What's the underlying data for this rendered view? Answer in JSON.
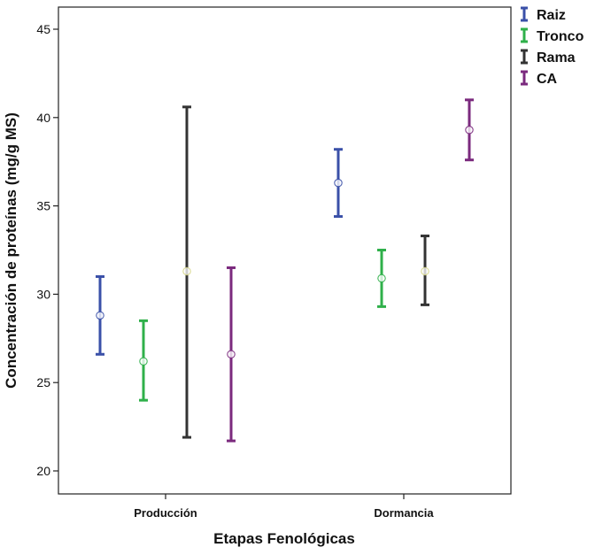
{
  "chart_data": {
    "type": "errorbar",
    "xlabel": "Etapas Fenológicas",
    "ylabel": "Concentración de proteínas (mg/g MS)",
    "categories": [
      "Producción",
      "Dormancia"
    ],
    "ylim": [
      19,
      46.3
    ],
    "yticks": [
      20,
      25,
      30,
      35,
      40,
      45
    ],
    "grid": false,
    "legend_position": "right-top",
    "series": [
      {
        "name": "Raiz",
        "color": "#3a50a8",
        "means": [
          28.8,
          36.3
        ],
        "lower": [
          26.6,
          34.4
        ],
        "upper": [
          31.0,
          38.2
        ]
      },
      {
        "name": "Tronco",
        "color": "#2fb04a",
        "means": [
          26.2,
          30.9
        ],
        "lower": [
          24.0,
          29.3
        ],
        "upper": [
          28.5,
          32.5
        ]
      },
      {
        "name": "Rama",
        "color": "#333333",
        "means": [
          31.3,
          31.3
        ],
        "lower": [
          21.9,
          29.4
        ],
        "upper": [
          40.6,
          33.3
        ]
      },
      {
        "name": "CA",
        "color": "#7b2a7e",
        "means": [
          26.6,
          39.3
        ],
        "lower": [
          21.7,
          37.6
        ],
        "upper": [
          31.5,
          41.0
        ]
      }
    ]
  }
}
